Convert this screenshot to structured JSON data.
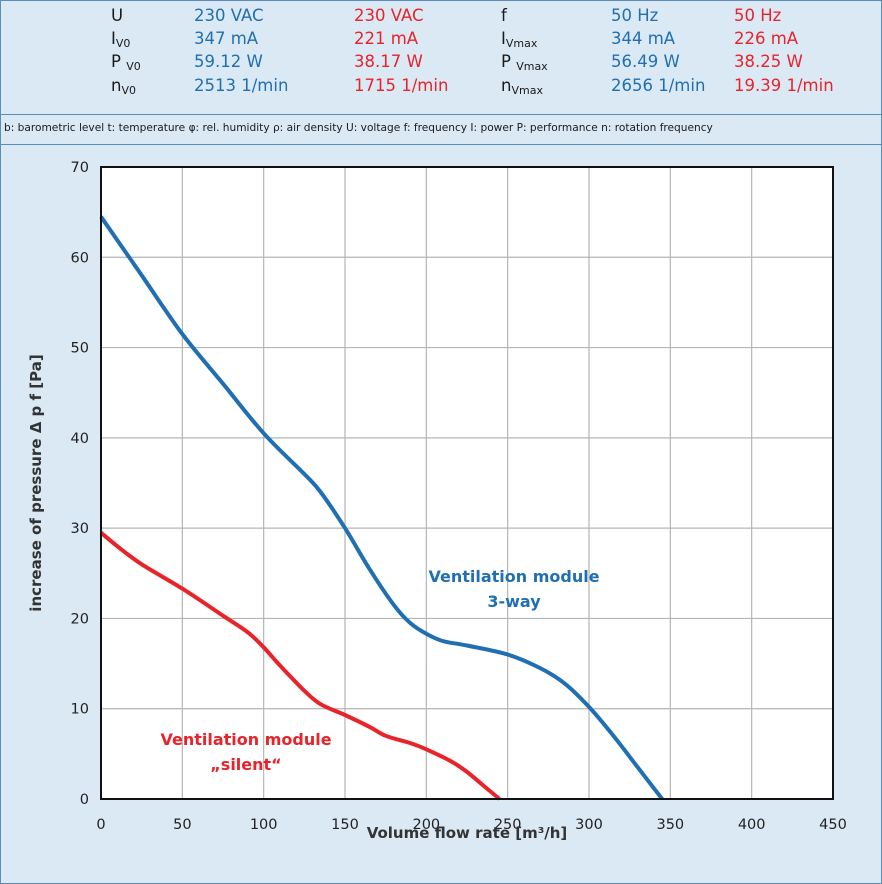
{
  "spec": {
    "rows": [
      {
        "left": {
          "name": "U",
          "sub": "",
          "blue": "230 VAC",
          "red": "230 VAC"
        },
        "right": {
          "name": "f",
          "sub": "",
          "blue": "50 Hz",
          "red": "50 Hz"
        }
      },
      {
        "left": {
          "name": "I",
          "sub": "V0",
          "blue": "347 mA",
          "red": "221 mA"
        },
        "right": {
          "name": "I",
          "sub": "Vmax",
          "blue": "344 mA",
          "red": "226 mA"
        }
      },
      {
        "left": {
          "name": "P ",
          "sub": "V0",
          "blue": "59.12 W",
          "red": "38.17 W"
        },
        "right": {
          "name": "P ",
          "sub": "Vmax",
          "blue": "56.49 W",
          "red": "38.25 W"
        }
      },
      {
        "left": {
          "name": "n",
          "sub": "V0",
          "blue": "2513 1/min",
          "red": "1715 1/min"
        },
        "right": {
          "name": "n",
          "sub": "Vmax",
          "blue": "2656 1/min",
          "red": "19.39 1/min"
        }
      }
    ]
  },
  "legend_text": "b: barometric level   t: temperature   φ: rel. humidity   ρ: air density   U: voltage   f: frequency   I: power   P: performance   n: rotation frequency",
  "colors": {
    "blue": "#1f6fb2",
    "red": "#e8232a",
    "grid": "#b5b5b5",
    "background": "#dbe9f5",
    "plot_bg": "#ffffff"
  },
  "chart_data": {
    "type": "line",
    "xlabel": "Volume flow rate [m³/h]",
    "ylabel": "increase of pressure Δ p f [Pa]",
    "xlim": [
      0,
      450
    ],
    "ylim": [
      0,
      70
    ],
    "xticks": [
      0,
      50,
      100,
      150,
      200,
      250,
      300,
      350,
      400,
      450
    ],
    "yticks": [
      0,
      10,
      20,
      30,
      40,
      50,
      60,
      70
    ],
    "grid": true,
    "series": [
      {
        "name": "Ventilation module 3-way",
        "label_lines": [
          "Ventilation module",
          "3-way"
        ],
        "color": "#1f6fb2",
        "x": [
          0,
          25,
          50,
          75,
          100,
          125,
          135,
          150,
          165,
          180,
          190,
          200,
          210,
          225,
          250,
          270,
          285,
          300,
          315,
          330,
          345
        ],
        "y": [
          64.5,
          58,
          51.5,
          46,
          40.5,
          36,
          34,
          30,
          25.5,
          21.5,
          19.5,
          18.3,
          17.5,
          17,
          16,
          14.5,
          12.8,
          10.2,
          7,
          3.5,
          0
        ]
      },
      {
        "name": "Ventilation module „silent“",
        "label_lines": [
          "Ventilation module",
          "„silent“"
        ],
        "color": "#e8232a",
        "x": [
          0,
          10,
          25,
          50,
          75,
          90,
          100,
          110,
          125,
          135,
          150,
          165,
          175,
          190,
          200,
          215,
          225,
          235,
          245
        ],
        "y": [
          29.5,
          28,
          26,
          23.3,
          20.3,
          18.5,
          16.8,
          14.8,
          12,
          10.5,
          9.3,
          8,
          7,
          6.2,
          5.5,
          4.2,
          3,
          1.5,
          0
        ]
      }
    ]
  }
}
